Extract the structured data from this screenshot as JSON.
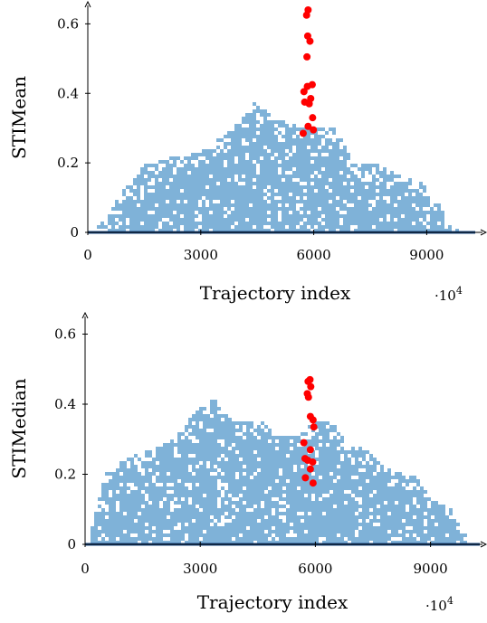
{
  "chart_data": [
    {
      "type": "scatter",
      "xlabel": "Trajectory index",
      "ylabel": "STIMean",
      "x_multiplier": "·10",
      "x_multiplier_exp": "4",
      "xlim": [
        0,
        10000
      ],
      "ylim": [
        0,
        0.64
      ],
      "xticks": [
        0,
        3000,
        6000,
        9000
      ],
      "yticks": [
        0,
        0.2,
        0.4,
        0.6
      ],
      "ytick_labels": [
        "0",
        "0.2",
        "0.4",
        "0.6"
      ],
      "background_color": "#7fb2d8",
      "baseline_color": "#1f4f8a",
      "highlight_color": "#ff0000",
      "envelope": [
        [
          0,
          0.0
        ],
        [
          500,
          0.05
        ],
        [
          900,
          0.13
        ],
        [
          1500,
          0.2
        ],
        [
          2200,
          0.22
        ],
        [
          3000,
          0.24
        ],
        [
          3800,
          0.3
        ],
        [
          4400,
          0.38
        ],
        [
          5000,
          0.33
        ],
        [
          5500,
          0.31
        ],
        [
          6200,
          0.31
        ],
        [
          6600,
          0.3
        ],
        [
          7000,
          0.2
        ],
        [
          7600,
          0.2
        ],
        [
          8200,
          0.17
        ],
        [
          8800,
          0.15
        ],
        [
          9200,
          0.1
        ],
        [
          9600,
          0.02
        ],
        [
          10000,
          0.0
        ]
      ],
      "highlight_points": [
        {
          "x": 5850,
          "y": 0.64
        },
        {
          "x": 5810,
          "y": 0.625
        },
        {
          "x": 5840,
          "y": 0.565
        },
        {
          "x": 5900,
          "y": 0.55
        },
        {
          "x": 5820,
          "y": 0.505
        },
        {
          "x": 5960,
          "y": 0.425
        },
        {
          "x": 5830,
          "y": 0.42
        },
        {
          "x": 5740,
          "y": 0.405
        },
        {
          "x": 5920,
          "y": 0.385
        },
        {
          "x": 5760,
          "y": 0.375
        },
        {
          "x": 5880,
          "y": 0.37
        },
        {
          "x": 5970,
          "y": 0.33
        },
        {
          "x": 5850,
          "y": 0.305
        },
        {
          "x": 5990,
          "y": 0.295
        },
        {
          "x": 5720,
          "y": 0.285
        }
      ]
    },
    {
      "type": "scatter",
      "xlabel": "Trajectory index",
      "ylabel": "STIMedian",
      "x_multiplier": "·10",
      "x_multiplier_exp": "4",
      "xlim": [
        0,
        10000
      ],
      "ylim": [
        0,
        0.64
      ],
      "xticks": [
        0,
        3000,
        6000,
        9000
      ],
      "yticks": [
        0,
        0.2,
        0.4,
        0.6
      ],
      "ytick_labels": [
        "0",
        "0.2",
        "0.4",
        "0.6"
      ],
      "background_color": "#7fb2d8",
      "baseline_color": "#1f4f8a",
      "highlight_color": "#ff0000",
      "envelope": [
        [
          0,
          0.0
        ],
        [
          200,
          0.08
        ],
        [
          500,
          0.21
        ],
        [
          900,
          0.24
        ],
        [
          1500,
          0.27
        ],
        [
          2200,
          0.3
        ],
        [
          2800,
          0.38
        ],
        [
          3300,
          0.42
        ],
        [
          3800,
          0.36
        ],
        [
          4500,
          0.36
        ],
        [
          5000,
          0.31
        ],
        [
          5500,
          0.32
        ],
        [
          6000,
          0.36
        ],
        [
          6500,
          0.35
        ],
        [
          6800,
          0.29
        ],
        [
          7200,
          0.28
        ],
        [
          7600,
          0.24
        ],
        [
          8000,
          0.21
        ],
        [
          8600,
          0.2
        ],
        [
          9000,
          0.13
        ],
        [
          9400,
          0.12
        ],
        [
          9800,
          0.05
        ],
        [
          10000,
          0.0
        ]
      ],
      "highlight_points": [
        {
          "x": 5860,
          "y": 0.47
        },
        {
          "x": 5810,
          "y": 0.465
        },
        {
          "x": 5880,
          "y": 0.45
        },
        {
          "x": 5790,
          "y": 0.43
        },
        {
          "x": 5820,
          "y": 0.42
        },
        {
          "x": 5870,
          "y": 0.365
        },
        {
          "x": 5940,
          "y": 0.355
        },
        {
          "x": 5960,
          "y": 0.335
        },
        {
          "x": 5700,
          "y": 0.29
        },
        {
          "x": 5870,
          "y": 0.27
        },
        {
          "x": 5730,
          "y": 0.245
        },
        {
          "x": 5800,
          "y": 0.24
        },
        {
          "x": 5930,
          "y": 0.235
        },
        {
          "x": 5870,
          "y": 0.215
        },
        {
          "x": 5740,
          "y": 0.19
        },
        {
          "x": 5940,
          "y": 0.175
        }
      ]
    }
  ]
}
